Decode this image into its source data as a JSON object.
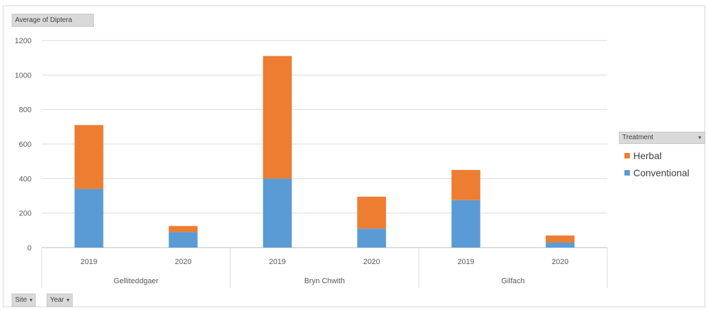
{
  "fields": {
    "value_label": "Average of Diptera",
    "site_label": "Site",
    "year_label": "Year",
    "dropdown_glyph": "▾"
  },
  "legend": {
    "header": "Treatment",
    "items": [
      {
        "label": "Herbal",
        "color": "#ed7d31"
      },
      {
        "label": "Conventional",
        "color": "#5b9bd5"
      }
    ]
  },
  "chart_data": {
    "type": "bar",
    "stacked": true,
    "title": "",
    "ylabel": "",
    "xlabel": "",
    "ylim": [
      0,
      1200
    ],
    "yticks": [
      0,
      200,
      400,
      600,
      800,
      1000,
      1200
    ],
    "groups": [
      {
        "name": "Gelliteddgaer",
        "categories": [
          "2019",
          "2020"
        ]
      },
      {
        "name": "Bryn Chwith",
        "categories": [
          "2019",
          "2020"
        ]
      },
      {
        "name": "Gilfach",
        "categories": [
          "2019",
          "2020"
        ]
      }
    ],
    "series": [
      {
        "name": "Conventional",
        "color": "#5b9bd5",
        "values": [
          340,
          90,
          400,
          110,
          275,
          30
        ]
      },
      {
        "name": "Herbal",
        "color": "#ed7d31",
        "values": [
          370,
          35,
          710,
          185,
          175,
          40
        ]
      }
    ],
    "grid": true,
    "legend_position": "right"
  }
}
